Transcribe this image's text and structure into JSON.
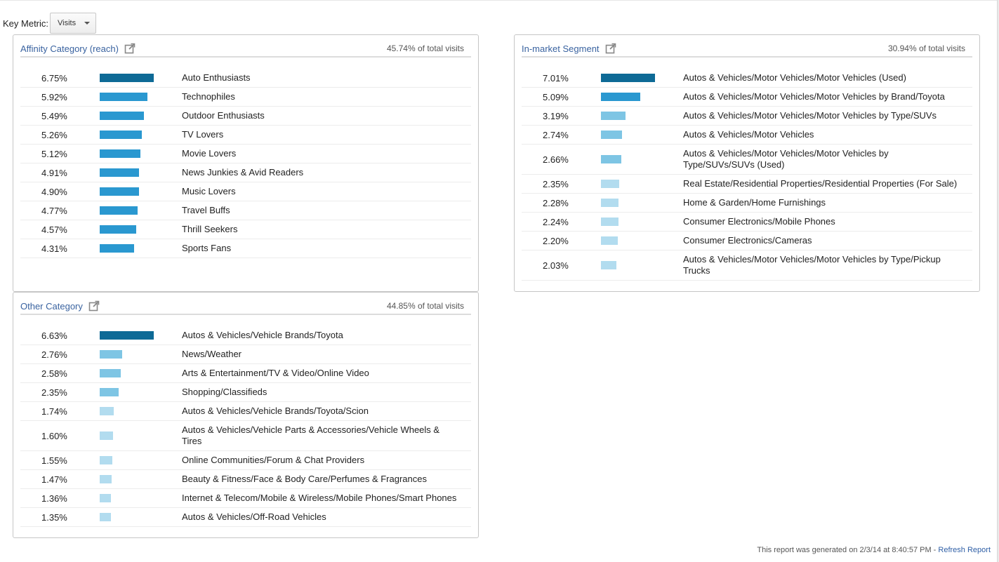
{
  "key_metric": {
    "label": "Key Metric:",
    "selected": "Visits"
  },
  "affinity": {
    "title": "Affinity Category (reach)",
    "meta": "45.74% of total visits",
    "rows": [
      {
        "pct": "6.75%",
        "value": 6.75,
        "label": "Auto Enthusiasts"
      },
      {
        "pct": "5.92%",
        "value": 5.92,
        "label": "Technophiles"
      },
      {
        "pct": "5.49%",
        "value": 5.49,
        "label": "Outdoor Enthusiasts"
      },
      {
        "pct": "5.26%",
        "value": 5.26,
        "label": "TV Lovers"
      },
      {
        "pct": "5.12%",
        "value": 5.12,
        "label": "Movie Lovers"
      },
      {
        "pct": "4.91%",
        "value": 4.91,
        "label": "News Junkies & Avid Readers"
      },
      {
        "pct": "4.90%",
        "value": 4.9,
        "label": "Music Lovers"
      },
      {
        "pct": "4.77%",
        "value": 4.77,
        "label": "Travel Buffs"
      },
      {
        "pct": "4.57%",
        "value": 4.57,
        "label": "Thrill Seekers"
      },
      {
        "pct": "4.31%",
        "value": 4.31,
        "label": "Sports Fans"
      }
    ]
  },
  "inmarket": {
    "title": "In-market Segment",
    "meta": "30.94% of total visits",
    "rows": [
      {
        "pct": "7.01%",
        "value": 7.01,
        "label": "Autos & Vehicles/Motor Vehicles/Motor Vehicles (Used)"
      },
      {
        "pct": "5.09%",
        "value": 5.09,
        "label": "Autos & Vehicles/Motor Vehicles/Motor Vehicles by Brand/Toyota"
      },
      {
        "pct": "3.19%",
        "value": 3.19,
        "label": "Autos & Vehicles/Motor Vehicles/Motor Vehicles by Type/SUVs"
      },
      {
        "pct": "2.74%",
        "value": 2.74,
        "label": "Autos & Vehicles/Motor Vehicles"
      },
      {
        "pct": "2.66%",
        "value": 2.66,
        "label": "Autos & Vehicles/Motor Vehicles/Motor Vehicles by Type/SUVs/SUVs (Used)"
      },
      {
        "pct": "2.35%",
        "value": 2.35,
        "label": "Real Estate/Residential Properties/Residential Properties (For Sale)"
      },
      {
        "pct": "2.28%",
        "value": 2.28,
        "label": "Home & Garden/Home Furnishings"
      },
      {
        "pct": "2.24%",
        "value": 2.24,
        "label": "Consumer Electronics/Mobile Phones"
      },
      {
        "pct": "2.20%",
        "value": 2.2,
        "label": "Consumer Electronics/Cameras"
      },
      {
        "pct": "2.03%",
        "value": 2.03,
        "label": "Autos & Vehicles/Motor Vehicles/Motor Vehicles by Type/Pickup Trucks"
      }
    ]
  },
  "other": {
    "title": "Other Category",
    "meta": "44.85% of total visits",
    "rows": [
      {
        "pct": "6.63%",
        "value": 6.63,
        "label": "Autos & Vehicles/Vehicle Brands/Toyota"
      },
      {
        "pct": "2.76%",
        "value": 2.76,
        "label": "News/Weather"
      },
      {
        "pct": "2.58%",
        "value": 2.58,
        "label": "Arts & Entertainment/TV & Video/Online Video"
      },
      {
        "pct": "2.35%",
        "value": 2.35,
        "label": "Shopping/Classifieds"
      },
      {
        "pct": "1.74%",
        "value": 1.74,
        "label": "Autos & Vehicles/Vehicle Brands/Toyota/Scion"
      },
      {
        "pct": "1.60%",
        "value": 1.6,
        "label": "Autos & Vehicles/Vehicle Parts & Accessories/Vehicle Wheels & Tires"
      },
      {
        "pct": "1.55%",
        "value": 1.55,
        "label": "Online Communities/Forum & Chat Providers"
      },
      {
        "pct": "1.47%",
        "value": 1.47,
        "label": "Beauty & Fitness/Face & Body Care/Perfumes & Fragrances"
      },
      {
        "pct": "1.36%",
        "value": 1.36,
        "label": "Internet & Telecom/Mobile & Wireless/Mobile Phones/Smart Phones"
      },
      {
        "pct": "1.35%",
        "value": 1.35,
        "label": "Autos & Vehicles/Off-Road Vehicles"
      }
    ]
  },
  "footer": {
    "text": "This report was generated on 2/3/14 at 8:40:57 PM - ",
    "link": "Refresh Report"
  },
  "colors": {
    "bar_top": "#0e6a96",
    "bar_high": "#2a98d0",
    "bar_mid": "#7ec5e4",
    "bar_low": "#b2dcef"
  }
}
